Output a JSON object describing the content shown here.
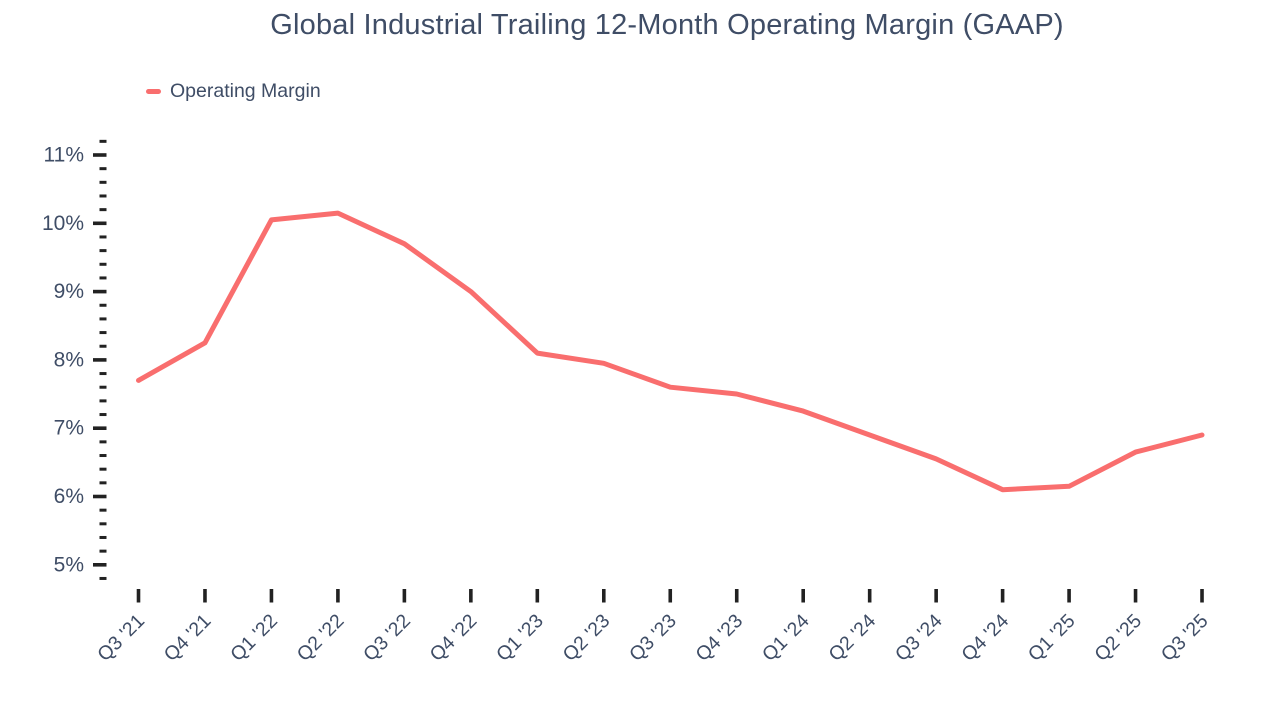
{
  "title": "Global Industrial Trailing 12-Month Operating Margin (GAAP)",
  "legend": {
    "items": [
      {
        "label": "Operating Margin",
        "color": "#F96E6E"
      }
    ]
  },
  "colors": {
    "line": "#F96E6E",
    "text": "#3F4D66",
    "tick": "#222222",
    "background": "#FFFFFF"
  },
  "chart_data": {
    "type": "line",
    "title": "Global Industrial Trailing 12-Month Operating Margin (GAAP)",
    "categories": [
      "Q3 '21",
      "Q4 '21",
      "Q1 '22",
      "Q2 '22",
      "Q3 '22",
      "Q4 '22",
      "Q1 '23",
      "Q2 '23",
      "Q3 '23",
      "Q4 '23",
      "Q1 '24",
      "Q2 '24",
      "Q3 '24",
      "Q4 '24",
      "Q1 '25",
      "Q2 '25",
      "Q3 '25"
    ],
    "series": [
      {
        "name": "Operating Margin",
        "unit": "%",
        "values": [
          7.7,
          8.25,
          10.05,
          10.15,
          9.7,
          9.0,
          8.1,
          7.95,
          7.6,
          7.5,
          7.25,
          6.9,
          6.55,
          6.1,
          6.15,
          6.65,
          6.9
        ]
      }
    ],
    "xlabel": "",
    "ylabel": "",
    "ylim": [
      4.8,
      11.2
    ],
    "y_major_ticks": [
      5,
      6,
      7,
      8,
      9,
      10,
      11
    ],
    "y_tick_labels": [
      "5%",
      "6%",
      "7%",
      "8%",
      "9%",
      "10%",
      "11%"
    ],
    "y_minor_step": 0.2,
    "x_label_rotation": -45,
    "grid": false,
    "legend_position": "top-left"
  }
}
